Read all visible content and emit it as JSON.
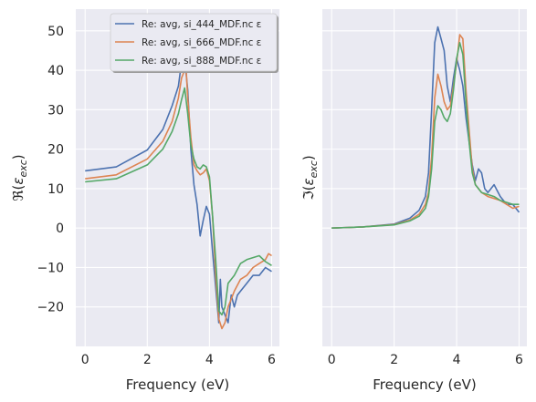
{
  "chart_data": [
    {
      "type": "line",
      "ylabel": "ℜ(ε_exc)",
      "xlabel": "Frequency (eV)",
      "xlim": [
        -0.3,
        6.25
      ],
      "ylim": [
        -30,
        55.5
      ],
      "xticks": [
        0,
        2,
        4,
        6
      ],
      "yticks": [
        -20,
        -10,
        0,
        10,
        20,
        30,
        40,
        50
      ],
      "grid": true,
      "legend": "top-right",
      "series": [
        {
          "name": "Re: avg, si_444_MDF.nc ε",
          "color": "#4c72b0",
          "x": [
            0,
            1,
            2,
            2.5,
            2.8,
            3.0,
            3.1,
            3.2,
            3.3,
            3.4,
            3.5,
            3.6,
            3.7,
            3.8,
            3.9,
            4.0,
            4.1,
            4.2,
            4.3,
            4.35,
            4.4,
            4.5,
            4.6,
            4.7,
            4.8,
            4.9,
            5.0,
            5.2,
            5.4,
            5.6,
            5.8,
            6.0
          ],
          "y": [
            14.5,
            15.5,
            19.8,
            25,
            31,
            36,
            42,
            43,
            35,
            20,
            11,
            6,
            -2,
            2,
            5.5,
            3.5,
            -6,
            -15,
            -24,
            -13,
            -20,
            -22,
            -24,
            -17,
            -20,
            -17,
            -16,
            -14,
            -12,
            -12,
            -10,
            -11
          ]
        },
        {
          "name": "Re: avg, si_666_MDF.nc ε",
          "color": "#dd8452",
          "x": [
            0,
            1,
            2,
            2.5,
            2.8,
            3.0,
            3.1,
            3.2,
            3.25,
            3.3,
            3.4,
            3.5,
            3.6,
            3.7,
            3.8,
            3.9,
            4.0,
            4.1,
            4.2,
            4.3,
            4.4,
            4.5,
            4.6,
            4.8,
            5.0,
            5.2,
            5.4,
            5.6,
            5.8,
            5.9,
            6.0
          ],
          "y": [
            12.5,
            13.5,
            17.5,
            22,
            27,
            33,
            38,
            40,
            40,
            33,
            23,
            16,
            14.5,
            13.5,
            14,
            15,
            12,
            3,
            -12,
            -23,
            -25.5,
            -24,
            -20,
            -16,
            -13,
            -12,
            -10,
            -9,
            -8,
            -6.5,
            -7
          ]
        },
        {
          "name": "Re: avg, si_888_MDF.nc ε",
          "color": "#55a868",
          "x": [
            0,
            1,
            2,
            2.5,
            2.8,
            3.0,
            3.1,
            3.2,
            3.3,
            3.4,
            3.5,
            3.6,
            3.7,
            3.8,
            3.9,
            4.0,
            4.1,
            4.2,
            4.3,
            4.4,
            4.5,
            4.6,
            4.8,
            5.0,
            5.2,
            5.4,
            5.6,
            5.8,
            6.0
          ],
          "y": [
            11.7,
            12.5,
            16,
            20,
            24.5,
            29,
            32.5,
            35.5,
            29,
            21,
            17.5,
            15.5,
            15,
            16,
            15.5,
            13,
            3,
            -8,
            -21,
            -22,
            -20,
            -14,
            -12,
            -9,
            -8,
            -7.5,
            -7,
            -8.5,
            -9.5
          ]
        }
      ]
    },
    {
      "type": "line",
      "ylabel": "ℑ(ε_exc)",
      "xlabel": "Frequency (eV)",
      "xlim": [
        -0.3,
        6.25
      ],
      "ylim": [
        -30,
        55.5
      ],
      "xticks": [
        0,
        2,
        4,
        6
      ],
      "grid": true,
      "series": [
        {
          "name": "Re: avg, si_444_MDF.nc ε",
          "color": "#4c72b0",
          "x": [
            0,
            1,
            2,
            2.5,
            2.8,
            3.0,
            3.1,
            3.2,
            3.3,
            3.4,
            3.5,
            3.6,
            3.7,
            3.8,
            3.9,
            4.0,
            4.1,
            4.2,
            4.3,
            4.4,
            4.5,
            4.6,
            4.7,
            4.8,
            4.9,
            5.0,
            5.2,
            5.4,
            5.6,
            5.8,
            6.0
          ],
          "y": [
            0,
            0.3,
            1,
            2.5,
            4.5,
            8,
            14,
            30,
            47,
            51,
            48,
            45,
            36,
            32,
            38,
            43,
            40,
            36,
            28,
            22,
            16,
            12,
            15,
            14,
            10,
            9,
            11,
            8,
            6,
            6,
            4
          ]
        },
        {
          "name": "Re: avg, si_666_MDF.nc ε",
          "color": "#dd8452",
          "x": [
            0,
            1,
            2,
            2.5,
            2.8,
            3.0,
            3.1,
            3.2,
            3.3,
            3.4,
            3.5,
            3.6,
            3.7,
            3.8,
            3.9,
            4.0,
            4.1,
            4.2,
            4.3,
            4.4,
            4.5,
            4.6,
            4.7,
            4.8,
            5.0,
            5.2,
            5.4,
            5.6,
            5.8,
            6.0
          ],
          "y": [
            0,
            0.3,
            0.9,
            2,
            3.5,
            6,
            9,
            18,
            33,
            39,
            36,
            32,
            30,
            31,
            36,
            42,
            49,
            48,
            35,
            25,
            15,
            11,
            10,
            9,
            8,
            7.5,
            7,
            6,
            5,
            5.5
          ]
        },
        {
          "name": "Re: avg, si_888_MDF.nc ε",
          "color": "#55a868",
          "x": [
            0,
            1,
            2,
            2.5,
            2.8,
            3.0,
            3.1,
            3.2,
            3.3,
            3.4,
            3.5,
            3.6,
            3.7,
            3.8,
            3.9,
            4.0,
            4.1,
            4.2,
            4.3,
            4.4,
            4.5,
            4.6,
            4.8,
            5.0,
            5.2,
            5.4,
            5.6,
            5.8,
            6.0
          ],
          "y": [
            0,
            0.3,
            0.8,
            1.8,
            3,
            5,
            8,
            15,
            27,
            31,
            30,
            28,
            27,
            29,
            35,
            43,
            47,
            44,
            32,
            22,
            14,
            11,
            9,
            8.5,
            8,
            7,
            6.5,
            6,
            6
          ]
        }
      ]
    }
  ]
}
